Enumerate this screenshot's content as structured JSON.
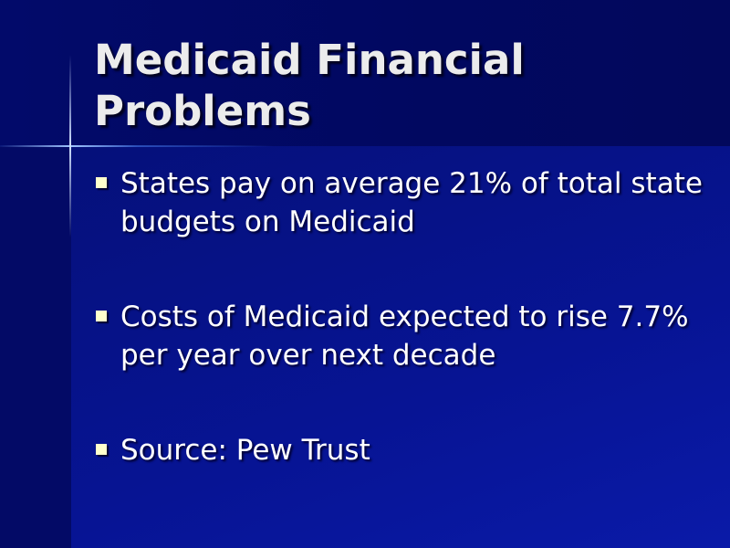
{
  "slide": {
    "title": "Medicaid Financial Problems",
    "bullets": [
      {
        "text": "States pay on average 21% of total state budgets on Medicaid"
      },
      {
        "text": "Costs of Medicaid expected to rise 7.7% per year over next decade"
      },
      {
        "text": "Source: Pew Trust"
      }
    ],
    "colors": {
      "background": "#020560",
      "title": "#ececec",
      "bullet": "#ffffcc",
      "text": "#ffffff"
    }
  }
}
